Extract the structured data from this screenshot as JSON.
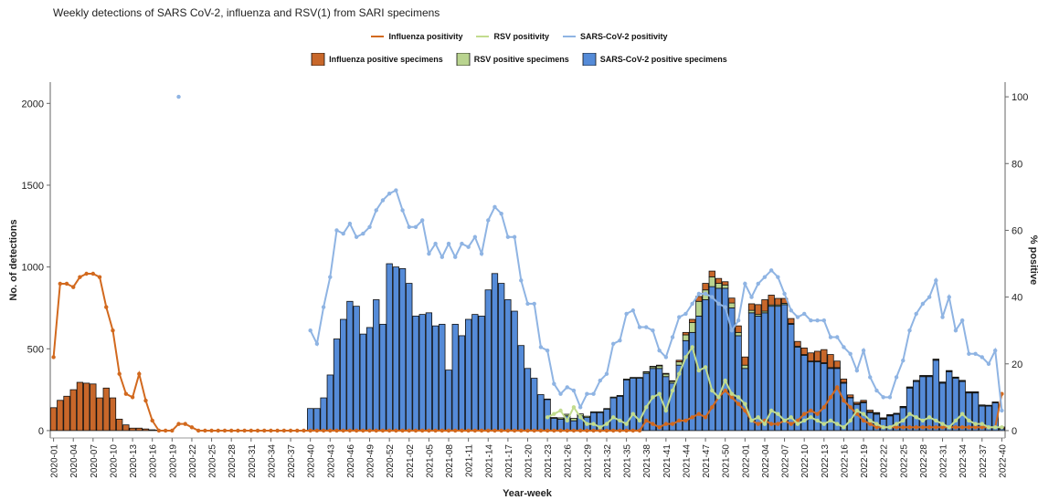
{
  "chart_data": {
    "type": "bar",
    "title": "Weekly detections of SARS CoV-2, influenza and RSV(1) from SARI specimens",
    "x_label": "Year-week",
    "y_label": "No. of detections",
    "y2_label": "% positive",
    "categories": [
      "2020-01",
      null,
      null,
      "2020-04",
      null,
      null,
      "2020-07",
      null,
      null,
      "2020-10",
      null,
      null,
      "2020-13",
      null,
      null,
      "2020-16",
      null,
      null,
      "2020-19",
      null,
      null,
      "2020-22",
      null,
      null,
      "2020-25",
      null,
      null,
      "2020-28",
      null,
      null,
      "2020-31",
      null,
      null,
      "2020-34",
      null,
      null,
      "2020-37",
      null,
      null,
      "2020-40",
      null,
      null,
      "2020-43",
      null,
      null,
      "2020-46",
      null,
      null,
      "2020-49",
      null,
      null,
      "2020-52",
      null,
      null,
      "2021-02",
      null,
      null,
      "2021-05",
      null,
      null,
      "2021-08",
      null,
      null,
      "2021-11",
      null,
      null,
      "2021-14",
      null,
      null,
      "2021-17",
      null,
      null,
      "2021-20",
      null,
      null,
      "2021-23",
      null,
      null,
      "2021-26",
      null,
      null,
      "2021-29",
      null,
      null,
      "2021-32",
      null,
      null,
      "2021-35",
      null,
      null,
      "2021-38",
      null,
      null,
      "2021-41",
      null,
      null,
      "2021-44",
      null,
      null,
      "2021-47",
      null,
      null,
      "2021-50",
      null,
      null,
      "2022-01",
      null,
      null,
      "2022-04",
      null,
      null,
      "2022-07",
      null,
      null,
      "2022-10",
      null,
      null,
      "2022-13",
      null,
      null,
      "2022-16",
      null,
      null,
      "2022-19",
      null,
      null,
      "2022-22",
      null,
      null,
      "2022-25",
      null,
      null,
      "2022-28",
      null,
      null,
      "2022-31",
      null,
      null,
      "2022-34",
      null,
      null,
      "2022-37",
      null,
      null,
      "2022-40"
    ],
    "ylim": [
      -45,
      2130
    ],
    "yticks": [
      0,
      500,
      1000,
      1500,
      2000
    ],
    "y2lim": [
      -2.2,
      104.4
    ],
    "y2ticks": [
      0,
      20,
      40,
      60,
      80,
      100
    ],
    "series": [
      {
        "name": "Influenza positivity",
        "type": "line",
        "axis": "y2",
        "color": "#d2691e",
        "legend_row": 1,
        "values": [
          22,
          44,
          44,
          43,
          46,
          47,
          47,
          46,
          37,
          30,
          17,
          11,
          10,
          17,
          9,
          3,
          0,
          0,
          0,
          2,
          2,
          1,
          0,
          0,
          0,
          0,
          0,
          0,
          0,
          0,
          0,
          0,
          0,
          0,
          0,
          0,
          0,
          0,
          0,
          0,
          0,
          0,
          0,
          0,
          0,
          0,
          0,
          0,
          0,
          0,
          0,
          0,
          0,
          0,
          0,
          0,
          0,
          0,
          0,
          0,
          0,
          0,
          0,
          0,
          0,
          0,
          0,
          0,
          0,
          0,
          0,
          0,
          0,
          0,
          0,
          0,
          0,
          0,
          0,
          0,
          0,
          0,
          0,
          0,
          0,
          0,
          0,
          0,
          0,
          0,
          3,
          2,
          1,
          2,
          2,
          3,
          3,
          4,
          5,
          4,
          7,
          10,
          12,
          10,
          8,
          6,
          3,
          2,
          3,
          2,
          2,
          3,
          2,
          3,
          5,
          6,
          5,
          7,
          10,
          13,
          9,
          7,
          5,
          3,
          2,
          1,
          1,
          1,
          1,
          1,
          1,
          1,
          1,
          1,
          1,
          1,
          1,
          1,
          1,
          1,
          1,
          1,
          1,
          1,
          11
        ]
      },
      {
        "name": "RSV positivity",
        "type": "line",
        "axis": "y2",
        "color": "#c2dc8e",
        "legend_row": 1,
        "values": [
          null,
          null,
          null,
          null,
          null,
          null,
          null,
          null,
          null,
          null,
          null,
          null,
          null,
          null,
          null,
          null,
          null,
          null,
          null,
          null,
          null,
          null,
          null,
          null,
          null,
          null,
          null,
          null,
          null,
          null,
          null,
          null,
          null,
          null,
          null,
          null,
          null,
          null,
          null,
          null,
          null,
          null,
          null,
          null,
          null,
          null,
          null,
          null,
          null,
          null,
          null,
          null,
          null,
          null,
          null,
          null,
          null,
          null,
          null,
          null,
          null,
          null,
          null,
          null,
          null,
          null,
          null,
          null,
          null,
          null,
          null,
          null,
          null,
          null,
          null,
          4,
          5,
          6,
          3,
          7,
          4,
          2,
          2,
          1,
          2,
          4,
          3,
          2,
          5,
          3,
          7,
          10,
          11,
          6,
          12,
          17,
          22,
          25,
          18,
          19,
          12,
          10,
          15,
          11,
          10,
          8,
          3,
          4,
          2,
          6,
          5,
          3,
          4,
          2,
          3,
          4,
          3,
          2,
          3,
          2,
          1,
          3,
          6,
          5,
          3,
          2,
          1,
          1,
          2,
          3,
          5,
          4,
          3,
          4,
          3,
          2,
          1,
          3,
          5,
          3,
          2,
          2,
          1,
          1,
          1
        ]
      },
      {
        "name": "SARS-CoV-2 positivity",
        "type": "line",
        "axis": "y2",
        "color": "#8fb4e3",
        "legend_row": 1,
        "values": [
          null,
          null,
          null,
          null,
          null,
          null,
          null,
          null,
          null,
          null,
          null,
          null,
          null,
          null,
          null,
          null,
          null,
          null,
          null,
          100,
          null,
          null,
          null,
          null,
          null,
          null,
          null,
          null,
          null,
          null,
          null,
          null,
          null,
          null,
          null,
          null,
          null,
          null,
          null,
          30,
          26,
          37,
          46,
          60,
          59,
          62,
          58,
          59,
          61,
          66,
          69,
          71,
          72,
          66,
          61,
          61,
          63,
          53,
          56,
          52,
          56,
          52,
          56,
          55,
          58,
          53,
          63,
          67,
          65,
          58,
          58,
          45,
          38,
          38,
          25,
          24,
          14,
          11,
          13,
          12,
          7,
          11,
          11,
          15,
          17,
          26,
          27,
          35,
          36,
          31,
          31,
          30,
          24,
          22,
          28,
          34,
          35,
          38,
          41,
          41,
          40,
          38,
          37,
          30,
          33,
          44,
          40,
          44,
          46,
          48,
          46,
          41,
          36,
          34,
          35,
          33,
          33,
          33,
          28,
          28,
          25,
          23,
          18,
          24,
          16,
          12,
          10,
          10,
          16,
          21,
          30,
          35,
          38,
          40,
          45,
          34,
          40,
          30,
          33,
          23,
          23,
          22,
          20,
          24,
          6
        ]
      },
      {
        "name": "Influenza positive specimens",
        "type": "bar",
        "color": "#c8672a",
        "legend_row": 2,
        "values": [
          140,
          185,
          210,
          250,
          295,
          290,
          285,
          200,
          260,
          200,
          70,
          35,
          15,
          15,
          10,
          5,
          3,
          0,
          0,
          0,
          0,
          0,
          0,
          0,
          0,
          0,
          0,
          0,
          0,
          0,
          0,
          0,
          0,
          0,
          0,
          0,
          0,
          0,
          0,
          0,
          0,
          0,
          0,
          0,
          0,
          0,
          0,
          0,
          0,
          0,
          0,
          0,
          0,
          0,
          0,
          0,
          0,
          0,
          0,
          0,
          0,
          0,
          0,
          0,
          0,
          0,
          0,
          0,
          0,
          0,
          0,
          0,
          0,
          0,
          0,
          0,
          0,
          0,
          0,
          0,
          0,
          0,
          0,
          0,
          0,
          0,
          0,
          0,
          0,
          0,
          2,
          3,
          5,
          5,
          5,
          10,
          15,
          20,
          30,
          40,
          35,
          30,
          20,
          30,
          40,
          50,
          40,
          60,
          70,
          60,
          40,
          30,
          30,
          30,
          40,
          50,
          60,
          80,
          80,
          40,
          20,
          15,
          10,
          10,
          10,
          5,
          5,
          5,
          3,
          3,
          2,
          2,
          2,
          2,
          2,
          2,
          2,
          2,
          2,
          2,
          2,
          2,
          2,
          2,
          10
        ]
      },
      {
        "name": "RSV positive specimens",
        "type": "bar",
        "color": "#b9d48f",
        "legend_row": 2,
        "values": [
          0,
          0,
          0,
          0,
          0,
          0,
          0,
          0,
          0,
          0,
          0,
          0,
          0,
          0,
          0,
          0,
          0,
          0,
          0,
          0,
          0,
          0,
          0,
          0,
          0,
          0,
          0,
          0,
          0,
          0,
          0,
          0,
          0,
          0,
          0,
          0,
          0,
          0,
          0,
          0,
          0,
          0,
          0,
          0,
          0,
          0,
          0,
          0,
          0,
          0,
          0,
          0,
          0,
          0,
          0,
          0,
          0,
          0,
          0,
          0,
          0,
          0,
          0,
          0,
          0,
          0,
          0,
          0,
          0,
          0,
          0,
          0,
          0,
          0,
          0,
          3,
          5,
          8,
          10,
          15,
          12,
          8,
          5,
          5,
          5,
          5,
          5,
          5,
          5,
          5,
          8,
          10,
          15,
          15,
          10,
          20,
          35,
          60,
          90,
          60,
          60,
          30,
          20,
          30,
          20,
          20,
          15,
          10,
          10,
          8,
          8,
          8,
          5,
          5,
          5,
          5,
          5,
          5,
          5,
          5,
          5,
          3,
          3,
          5,
          5,
          5,
          3,
          3,
          3,
          5,
          5,
          5,
          5,
          5,
          5,
          5,
          5,
          5,
          5,
          5,
          5,
          5,
          3,
          3,
          2
        ]
      },
      {
        "name": "SARS-CoV-2 positive specimens",
        "type": "bar",
        "color": "#558bd8",
        "legend_row": 2,
        "values": [
          0,
          0,
          0,
          0,
          0,
          0,
          0,
          0,
          0,
          0,
          0,
          0,
          0,
          0,
          0,
          0,
          0,
          0,
          0,
          0,
          0,
          0,
          0,
          0,
          0,
          0,
          0,
          0,
          0,
          0,
          0,
          0,
          0,
          0,
          0,
          0,
          0,
          0,
          0,
          135,
          135,
          200,
          340,
          560,
          680,
          790,
          760,
          590,
          630,
          800,
          650,
          1020,
          1000,
          990,
          900,
          700,
          710,
          720,
          640,
          650,
          370,
          650,
          580,
          680,
          710,
          700,
          860,
          960,
          900,
          800,
          730,
          520,
          380,
          320,
          220,
          190,
          75,
          70,
          90,
          60,
          90,
          80,
          110,
          110,
          130,
          200,
          210,
          310,
          320,
          320,
          350,
          380,
          380,
          330,
          290,
          400,
          550,
          600,
          700,
          800,
          880,
          870,
          870,
          750,
          580,
          380,
          720,
          700,
          720,
          760,
          760,
          770,
          650,
          510,
          460,
          420,
          420,
          410,
          380,
          380,
          290,
          200,
          160,
          170,
          110,
          100,
          70,
          90,
          100,
          140,
          260,
          300,
          330,
          330,
          430,
          290,
          360,
          320,
          300,
          230,
          230,
          150,
          150,
          170,
          10
        ]
      }
    ]
  }
}
